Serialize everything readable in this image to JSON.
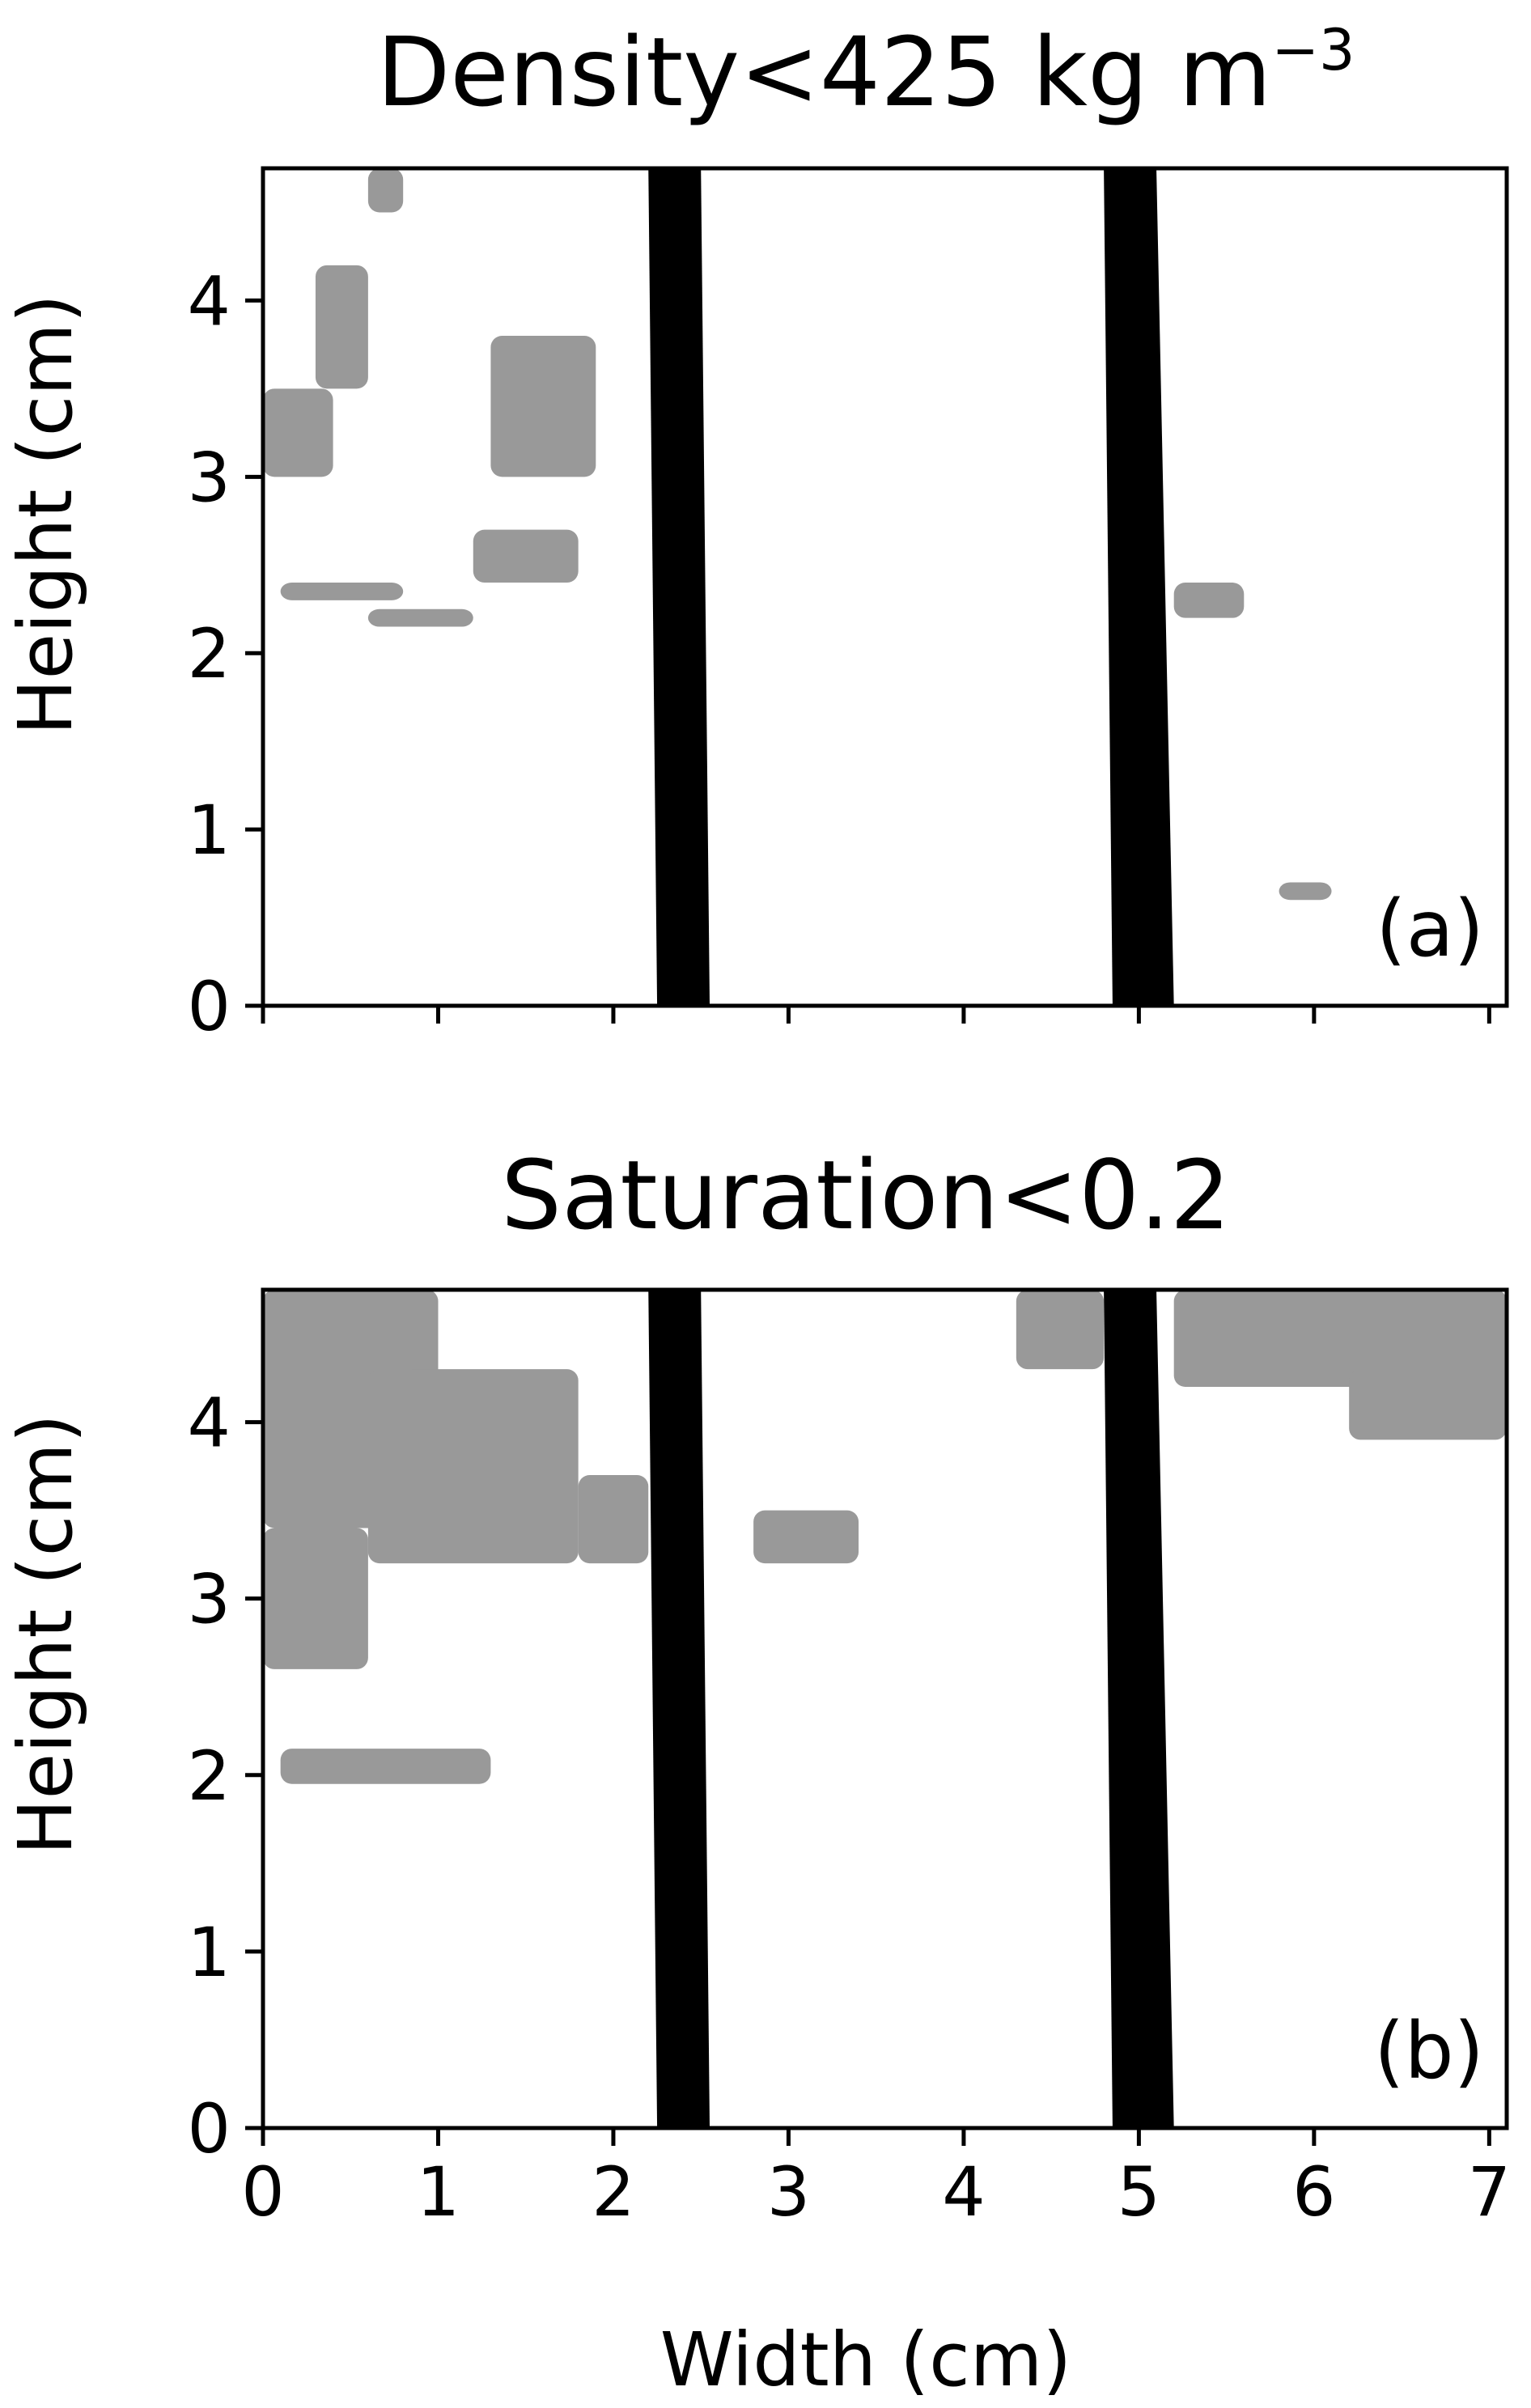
{
  "figure": {
    "colors": {
      "background": "#ffffff",
      "mask": "#999999",
      "rod": "#000000",
      "axes": "#000000"
    }
  },
  "chart_data": [
    {
      "type": "heatmap",
      "panel_label": "(a)",
      "title_main": "Density<425 kg m",
      "title_sup": "−3",
      "xlabel": "",
      "ylabel": "Height (cm)",
      "xlim": [
        0,
        7.1
      ],
      "ylim": [
        0,
        4.75
      ],
      "xticks": [
        0,
        1,
        2,
        3,
        4,
        5,
        6,
        7
      ],
      "yticks": [
        0,
        1,
        2,
        3,
        4
      ],
      "ytick_labels": [
        "0",
        "1",
        "2",
        "3",
        "4"
      ],
      "rods": [
        {
          "x_bottom": [
            2.25,
            2.55
          ],
          "x_top": [
            2.2,
            2.5
          ]
        },
        {
          "x_bottom": [
            4.85,
            5.2
          ],
          "x_top": [
            4.8,
            5.1
          ]
        }
      ],
      "mask_regions": [
        {
          "x": [
            0.0,
            0.4
          ],
          "y": [
            3.0,
            3.5
          ]
        },
        {
          "x": [
            0.3,
            0.6
          ],
          "y": [
            3.5,
            4.2
          ]
        },
        {
          "x": [
            0.1,
            0.8
          ],
          "y": [
            2.3,
            2.4
          ]
        },
        {
          "x": [
            0.6,
            1.2
          ],
          "y": [
            2.15,
            2.25
          ]
        },
        {
          "x": [
            1.2,
            1.8
          ],
          "y": [
            2.4,
            2.7
          ]
        },
        {
          "x": [
            1.3,
            1.9
          ],
          "y": [
            3.0,
            3.8
          ]
        },
        {
          "x": [
            0.6,
            0.8
          ],
          "y": [
            4.5,
            4.75
          ]
        },
        {
          "x": [
            5.2,
            5.6
          ],
          "y": [
            2.2,
            2.4
          ]
        },
        {
          "x": [
            5.8,
            6.1
          ],
          "y": [
            0.6,
            0.7
          ]
        }
      ]
    },
    {
      "type": "heatmap",
      "panel_label": "(b)",
      "title_main": "Saturation<0.2",
      "title_sup": "",
      "xlabel": "Width (cm)",
      "ylabel": "Height (cm)",
      "xlim": [
        0,
        7.1
      ],
      "ylim": [
        0,
        4.75
      ],
      "xticks": [
        0,
        1,
        2,
        3,
        4,
        5,
        6,
        7
      ],
      "xtick_labels": [
        "0",
        "1",
        "2",
        "3",
        "4",
        "5",
        "6",
        "7"
      ],
      "yticks": [
        0,
        1,
        2,
        3,
        4
      ],
      "ytick_labels": [
        "0",
        "1",
        "2",
        "3",
        "4"
      ],
      "rods": [
        {
          "x_bottom": [
            2.25,
            2.55
          ],
          "x_top": [
            2.2,
            2.5
          ]
        },
        {
          "x_bottom": [
            4.85,
            5.2
          ],
          "x_top": [
            4.8,
            5.1
          ]
        }
      ],
      "mask_regions": [
        {
          "x": [
            0.0,
            0.6
          ],
          "y": [
            2.6,
            3.4
          ]
        },
        {
          "x": [
            0.0,
            1.0
          ],
          "y": [
            3.4,
            4.75
          ]
        },
        {
          "x": [
            0.6,
            1.8
          ],
          "y": [
            3.2,
            4.3
          ]
        },
        {
          "x": [
            0.1,
            1.3
          ],
          "y": [
            1.95,
            2.15
          ]
        },
        {
          "x": [
            1.8,
            2.2
          ],
          "y": [
            3.2,
            3.7
          ]
        },
        {
          "x": [
            2.8,
            3.4
          ],
          "y": [
            3.2,
            3.5
          ]
        },
        {
          "x": [
            4.3,
            4.8
          ],
          "y": [
            4.3,
            4.75
          ]
        },
        {
          "x": [
            5.2,
            7.1
          ],
          "y": [
            4.2,
            4.75
          ]
        },
        {
          "x": [
            6.2,
            7.1
          ],
          "y": [
            3.9,
            4.3
          ]
        }
      ]
    }
  ]
}
